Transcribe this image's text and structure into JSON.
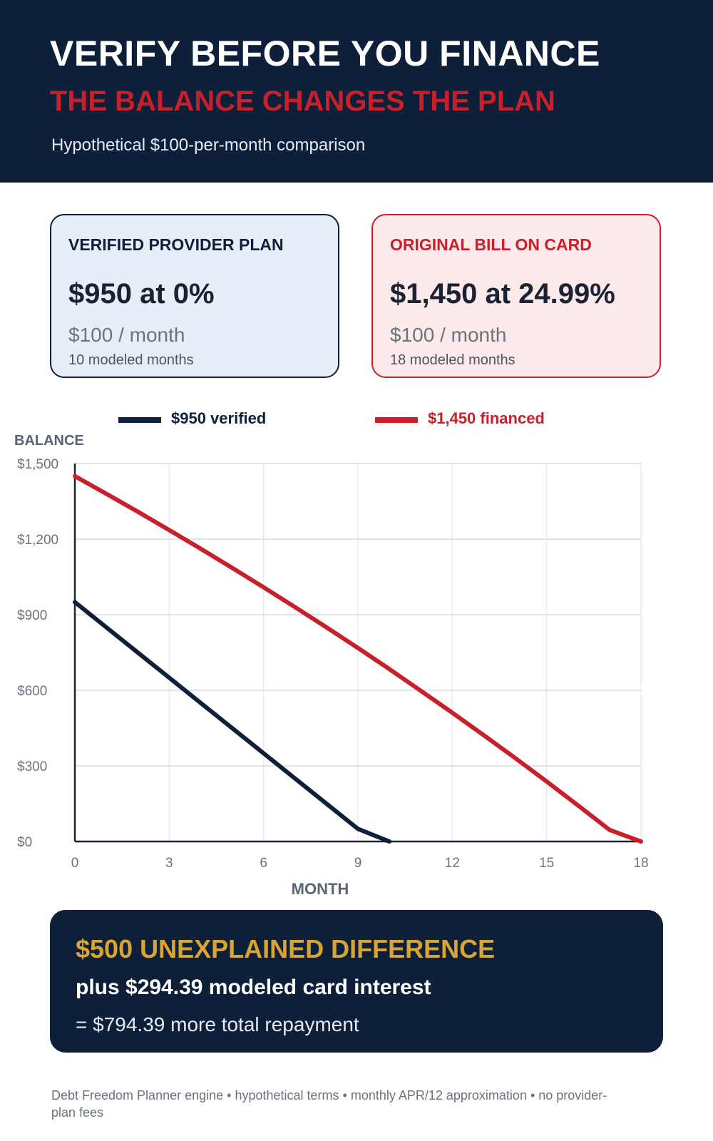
{
  "header": {
    "title": "VERIFY BEFORE YOU FINANCE",
    "subtitle": "THE BALANCE CHANGES THE PLAN",
    "caption": "Hypothetical $100-per-month comparison"
  },
  "cards": {
    "left": {
      "title": "VERIFIED PROVIDER PLAN",
      "headline": "$950 at 0%",
      "payment": "$100 / month",
      "term": "10 modeled months"
    },
    "right": {
      "title": "ORIGINAL BILL ON CARD",
      "headline": "$1,450 at 24.99%",
      "payment": "$100 / month",
      "term": "18 modeled months"
    }
  },
  "summary": {
    "headline": "$500 UNEXPLAINED DIFFERENCE",
    "line2": "plus $294.39 modeled card interest",
    "line3": "= $794.39 more total repayment"
  },
  "footer": "Debt Freedom Planner engine • hypothetical terms • monthly APR/12 approximation • no provider-plan fees",
  "colors": {
    "navy": "#0e1f3a",
    "red": "#c8202a",
    "gold": "#d9a531"
  },
  "chart_data": {
    "type": "line",
    "ylabel": "BALANCE",
    "xlabel": "MONTH",
    "xlim": [
      0,
      18
    ],
    "ylim": [
      0,
      1500
    ],
    "x_ticks": [
      0,
      3,
      6,
      9,
      12,
      15,
      18
    ],
    "y_ticks": [
      0,
      300,
      600,
      900,
      1200,
      1500
    ],
    "y_tick_labels": [
      "$0",
      "$300",
      "$600",
      "$900",
      "$1,200",
      "$1,500"
    ],
    "grid": true,
    "legend_position": "top",
    "series": [
      {
        "name": "$950 verified",
        "color": "#0e1f3a",
        "x": [
          0,
          1,
          2,
          3,
          4,
          5,
          6,
          7,
          8,
          9,
          10
        ],
        "y": [
          950,
          850,
          750,
          650,
          550,
          450,
          350,
          250,
          150,
          50,
          0
        ]
      },
      {
        "name": "$1,450 financed",
        "color": "#c8202a",
        "x": [
          0,
          1,
          2,
          3,
          4,
          5,
          6,
          7,
          8,
          9,
          10,
          11,
          12,
          13,
          14,
          15,
          16,
          17,
          18
        ],
        "y": [
          1450,
          1380,
          1309,
          1236,
          1162,
          1086,
          1009,
          930,
          850,
          768,
          684,
          598,
          511,
          422,
          331,
          238,
          143,
          46,
          0
        ]
      }
    ]
  }
}
